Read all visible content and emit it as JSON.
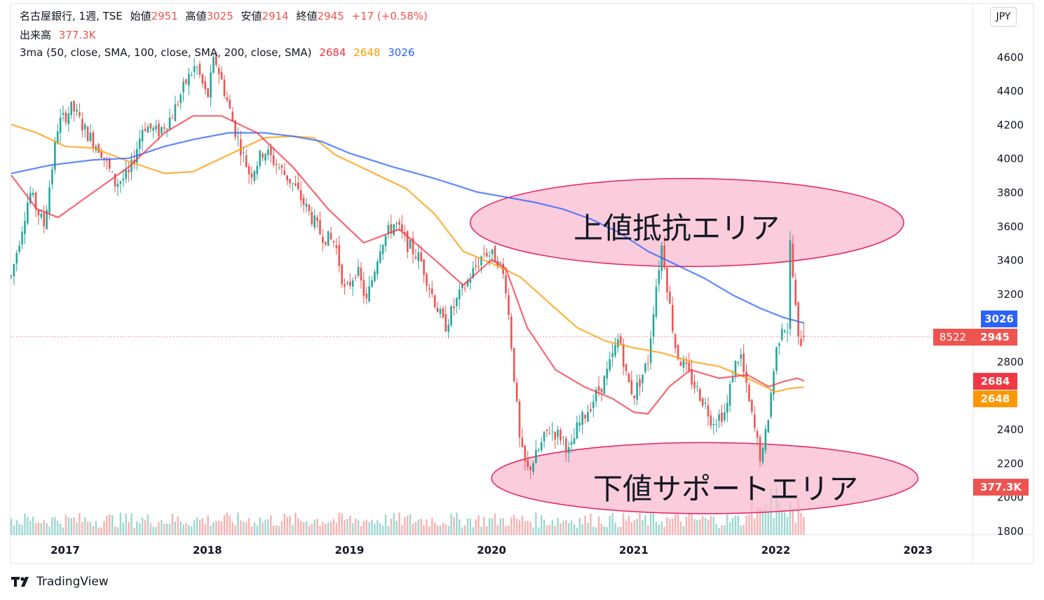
{
  "legend": {
    "symbol": "名古屋銀行, 1週, TSE",
    "open_label": "始値",
    "open": "2951",
    "high_label": "高値",
    "high": "3025",
    "low_label": "安値",
    "low": "2914",
    "close_label": "終値",
    "close": "2945",
    "change": "+17 (+0.58%)",
    "volume_label": "出来高",
    "volume": "377.3K",
    "ma_label": "3ma (50, close, SMA, 100, close, SMA, 200, close, SMA)",
    "ma50": "2684",
    "ma100": "2648",
    "ma200": "3026"
  },
  "currency": "JPY",
  "brand": "TradingView",
  "price_tags": {
    "ma200": "3026",
    "countdown": "8522",
    "last": "2945",
    "ma50": "2684",
    "ma100": "2648",
    "volume": "377.3K"
  },
  "annotations": {
    "resistance": "上値抵抗エリア",
    "support": "下値サポートエリア"
  },
  "colors": {
    "up": "#26a69a",
    "down": "#ef5350",
    "ma50": "#f23645",
    "ma100": "#ff9800",
    "ma200": "#2962ff",
    "ellipse_fill": "#f8bbd0",
    "ellipse_stroke": "#e91e63"
  },
  "chart_data": {
    "type": "candlestick",
    "interval": "1 week",
    "y_ticks": [
      1800,
      2000,
      2200,
      2400,
      2600,
      2800,
      3000,
      3200,
      3400,
      3600,
      3800,
      4000,
      4200,
      4400,
      4600
    ],
    "y_tick_labels": [
      "1800",
      "2000",
      "2200",
      "2400",
      "",
      "2800",
      "",
      "3200",
      "3400",
      "3600",
      "3800",
      "4000",
      "4200",
      "4400",
      "4600"
    ],
    "x_ticks": [
      "2017",
      "2018",
      "2019",
      "2020",
      "2021",
      "2022",
      "2023"
    ],
    "x_tick_years": [
      2017,
      2018,
      2019,
      2020,
      2021,
      2022,
      2023
    ],
    "x_range": [
      2016.6,
      2023.8
    ],
    "ylim": [
      1760,
      4800
    ],
    "price_path": [
      [
        2016.62,
        3300
      ],
      [
        2016.75,
        3800
      ],
      [
        2016.85,
        3600
      ],
      [
        2016.95,
        4200
      ],
      [
        2017.05,
        4300
      ],
      [
        2017.15,
        4150
      ],
      [
        2017.25,
        4050
      ],
      [
        2017.35,
        3850
      ],
      [
        2017.45,
        3900
      ],
      [
        2017.55,
        4200
      ],
      [
        2017.65,
        4150
      ],
      [
        2017.75,
        4250
      ],
      [
        2017.85,
        4450
      ],
      [
        2017.92,
        4550
      ],
      [
        2018.0,
        4350
      ],
      [
        2018.05,
        4600
      ],
      [
        2018.12,
        4400
      ],
      [
        2018.2,
        4150
      ],
      [
        2018.3,
        3900
      ],
      [
        2018.4,
        4050
      ],
      [
        2018.5,
        3950
      ],
      [
        2018.6,
        3850
      ],
      [
        2018.7,
        3700
      ],
      [
        2018.8,
        3550
      ],
      [
        2018.9,
        3500
      ],
      [
        2018.97,
        3200
      ],
      [
        2019.05,
        3350
      ],
      [
        2019.12,
        3150
      ],
      [
        2019.22,
        3500
      ],
      [
        2019.32,
        3620
      ],
      [
        2019.4,
        3500
      ],
      [
        2019.5,
        3400
      ],
      [
        2019.58,
        3200
      ],
      [
        2019.67,
        3000
      ],
      [
        2019.75,
        3150
      ],
      [
        2019.85,
        3300
      ],
      [
        2019.95,
        3450
      ],
      [
        2020.05,
        3400
      ],
      [
        2020.1,
        3250
      ],
      [
        2020.15,
        2800
      ],
      [
        2020.2,
        2300
      ],
      [
        2020.25,
        2150
      ],
      [
        2020.32,
        2250
      ],
      [
        2020.4,
        2400
      ],
      [
        2020.5,
        2350
      ],
      [
        2020.55,
        2250
      ],
      [
        2020.6,
        2400
      ],
      [
        2020.7,
        2550
      ],
      [
        2020.8,
        2700
      ],
      [
        2020.9,
        2950
      ],
      [
        2020.95,
        2700
      ],
      [
        2021.0,
        2600
      ],
      [
        2021.1,
        2800
      ],
      [
        2021.15,
        3200
      ],
      [
        2021.2,
        3500
      ],
      [
        2021.25,
        3150
      ],
      [
        2021.3,
        2850
      ],
      [
        2021.4,
        2700
      ],
      [
        2021.5,
        2550
      ],
      [
        2021.55,
        2450
      ],
      [
        2021.65,
        2500
      ],
      [
        2021.7,
        2750
      ],
      [
        2021.75,
        2850
      ],
      [
        2021.8,
        2600
      ],
      [
        2021.85,
        2400
      ],
      [
        2021.9,
        2200
      ],
      [
        2021.95,
        2500
      ],
      [
        2022.0,
        2850
      ],
      [
        2022.05,
        3050
      ],
      [
        2022.08,
        2950
      ],
      [
        2022.1,
        3500
      ],
      [
        2022.13,
        3200
      ],
      [
        2022.16,
        2900
      ],
      [
        2022.2,
        2945
      ]
    ],
    "ma50_path": [
      [
        2016.62,
        3900
      ],
      [
        2016.8,
        3700
      ],
      [
        2016.95,
        3650
      ],
      [
        2017.2,
        3800
      ],
      [
        2017.45,
        3950
      ],
      [
        2017.7,
        4150
      ],
      [
        2017.9,
        4250
      ],
      [
        2018.1,
        4250
      ],
      [
        2018.35,
        4150
      ],
      [
        2018.6,
        3950
      ],
      [
        2018.85,
        3700
      ],
      [
        2019.1,
        3500
      ],
      [
        2019.35,
        3580
      ],
      [
        2019.6,
        3400
      ],
      [
        2019.8,
        3250
      ],
      [
        2020.0,
        3400
      ],
      [
        2020.1,
        3350
      ],
      [
        2020.25,
        3000
      ],
      [
        2020.45,
        2750
      ],
      [
        2020.65,
        2650
      ],
      [
        2020.85,
        2580
      ],
      [
        2021.0,
        2500
      ],
      [
        2021.1,
        2490
      ],
      [
        2021.25,
        2650
      ],
      [
        2021.4,
        2750
      ],
      [
        2021.6,
        2700
      ],
      [
        2021.8,
        2720
      ],
      [
        2021.95,
        2650
      ],
      [
        2022.05,
        2680
      ],
      [
        2022.15,
        2700
      ],
      [
        2022.2,
        2684
      ]
    ],
    "ma100_path": [
      [
        2016.62,
        4200
      ],
      [
        2016.8,
        4150
      ],
      [
        2017.0,
        4070
      ],
      [
        2017.2,
        4060
      ],
      [
        2017.45,
        3980
      ],
      [
        2017.7,
        3910
      ],
      [
        2017.9,
        3920
      ],
      [
        2018.15,
        4020
      ],
      [
        2018.4,
        4120
      ],
      [
        2018.6,
        4130
      ],
      [
        2018.75,
        4120
      ],
      [
        2018.9,
        4020
      ],
      [
        2019.15,
        3920
      ],
      [
        2019.4,
        3820
      ],
      [
        2019.6,
        3670
      ],
      [
        2019.8,
        3450
      ],
      [
        2020.0,
        3380
      ],
      [
        2020.2,
        3300
      ],
      [
        2020.4,
        3150
      ],
      [
        2020.6,
        3000
      ],
      [
        2020.8,
        2920
      ],
      [
        2021.0,
        2880
      ],
      [
        2021.2,
        2850
      ],
      [
        2021.4,
        2800
      ],
      [
        2021.6,
        2770
      ],
      [
        2021.8,
        2700
      ],
      [
        2022.0,
        2620
      ],
      [
        2022.1,
        2640
      ],
      [
        2022.2,
        2648
      ]
    ],
    "ma200_path": [
      [
        2016.62,
        3910
      ],
      [
        2016.9,
        3960
      ],
      [
        2017.2,
        3990
      ],
      [
        2017.45,
        4000
      ],
      [
        2017.7,
        4070
      ],
      [
        2017.9,
        4110
      ],
      [
        2018.15,
        4150
      ],
      [
        2018.4,
        4150
      ],
      [
        2018.6,
        4130
      ],
      [
        2018.8,
        4100
      ],
      [
        2019.0,
        4030
      ],
      [
        2019.3,
        3950
      ],
      [
        2019.6,
        3880
      ],
      [
        2019.9,
        3800
      ],
      [
        2020.1,
        3770
      ],
      [
        2020.3,
        3740
      ],
      [
        2020.5,
        3700
      ],
      [
        2020.7,
        3640
      ],
      [
        2020.9,
        3560
      ],
      [
        2021.1,
        3450
      ],
      [
        2021.3,
        3370
      ],
      [
        2021.5,
        3290
      ],
      [
        2021.7,
        3190
      ],
      [
        2021.9,
        3110
      ],
      [
        2022.05,
        3060
      ],
      [
        2022.2,
        3026
      ]
    ],
    "volume_latest": "377.3K",
    "last_price": 2945,
    "resistance_zone": {
      "x_from": 2019.85,
      "x_to": 2022.9,
      "y_from": 3360,
      "y_to": 3880
    },
    "support_zone": {
      "x_from": 2020.0,
      "x_to": 2023.0,
      "y_from": 1900,
      "y_to": 2320
    }
  }
}
